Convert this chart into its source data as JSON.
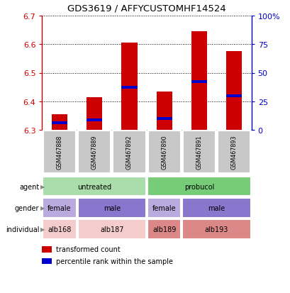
{
  "title": "GDS3619 / AFFYCUSTOMHF14524",
  "samples": [
    "GSM467888",
    "GSM467889",
    "GSM467892",
    "GSM467890",
    "GSM467891",
    "GSM467893"
  ],
  "bar_values": [
    6.355,
    6.415,
    6.605,
    6.435,
    6.645,
    6.575
  ],
  "bar_bottom": 6.3,
  "percentile_values": [
    6.325,
    6.335,
    6.45,
    6.34,
    6.47,
    6.42
  ],
  "ylim": [
    6.3,
    6.7
  ],
  "yticks_left": [
    6.3,
    6.4,
    6.5,
    6.6,
    6.7
  ],
  "yticks_right": [
    0,
    25,
    50,
    75,
    100
  ],
  "bar_color": "#cc0000",
  "percentile_color": "#0000cc",
  "sample_bg": "#c8c8c8",
  "agent_row": {
    "label": "agent",
    "groups": [
      {
        "text": "untreated",
        "start": 0,
        "end": 3,
        "color": "#aaddaa"
      },
      {
        "text": "probucol",
        "start": 3,
        "end": 6,
        "color": "#77cc77"
      }
    ]
  },
  "gender_row": {
    "label": "gender",
    "groups": [
      {
        "text": "female",
        "start": 0,
        "end": 1,
        "color": "#bbaadd"
      },
      {
        "text": "male",
        "start": 1,
        "end": 3,
        "color": "#8877cc"
      },
      {
        "text": "female",
        "start": 3,
        "end": 4,
        "color": "#bbaadd"
      },
      {
        "text": "male",
        "start": 4,
        "end": 6,
        "color": "#8877cc"
      }
    ]
  },
  "individual_row": {
    "label": "individual",
    "groups": [
      {
        "text": "alb168",
        "start": 0,
        "end": 1,
        "color": "#f5cccc"
      },
      {
        "text": "alb187",
        "start": 1,
        "end": 3,
        "color": "#f5cccc"
      },
      {
        "text": "alb189",
        "start": 3,
        "end": 4,
        "color": "#dd8888"
      },
      {
        "text": "alb193",
        "start": 4,
        "end": 6,
        "color": "#dd8888"
      }
    ]
  },
  "legend_items": [
    {
      "label": "transformed count",
      "color": "#cc0000"
    },
    {
      "label": "percentile rank within the sample",
      "color": "#0000cc"
    }
  ]
}
